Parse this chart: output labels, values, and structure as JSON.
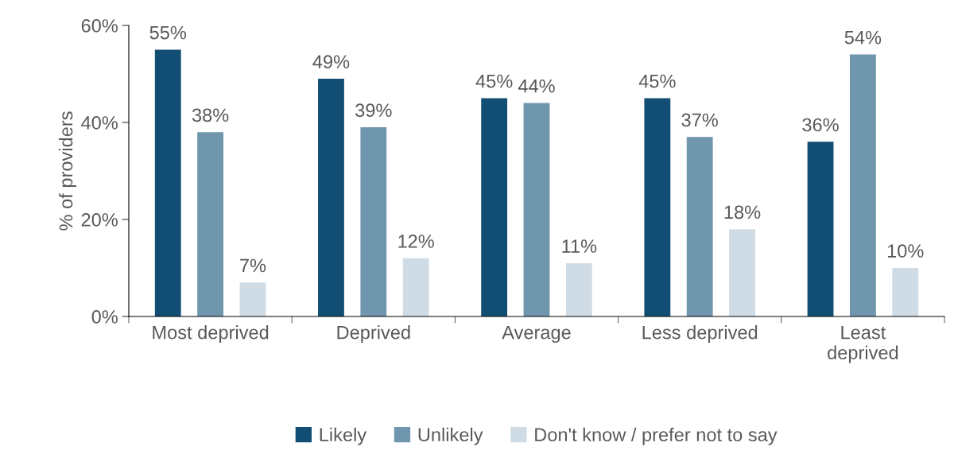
{
  "chart_data": {
    "type": "bar",
    "ylabel": "% of providers",
    "categories": [
      "Most deprived",
      "Deprived",
      "Average",
      "Less deprived",
      "Least\ndeprived"
    ],
    "series": [
      {
        "name": "Likely",
        "color": "#124e73",
        "values": [
          55,
          49,
          45,
          45,
          36
        ],
        "value_labels": [
          "55%",
          "49%",
          "45%",
          "45%",
          "36%"
        ]
      },
      {
        "name": "Unlikely",
        "color": "#7096ae",
        "values": [
          38,
          39,
          44,
          37,
          54
        ],
        "value_labels": [
          "38%",
          "39%",
          "44%",
          "37%",
          "54%"
        ]
      },
      {
        "name": "Don't know / prefer not to say",
        "color": "#d0dce5",
        "values": [
          7,
          12,
          11,
          18,
          10
        ],
        "value_labels": [
          "7%",
          "12%",
          "11%",
          "18%",
          "10%"
        ]
      }
    ],
    "ylim": [
      0,
      60
    ],
    "yticks": [
      {
        "value": 0,
        "label": "0%"
      },
      {
        "value": 20,
        "label": "20%"
      },
      {
        "value": 40,
        "label": "40%"
      },
      {
        "value": 60,
        "label": "60%"
      }
    ],
    "grid": false,
    "legend": "bottom"
  }
}
